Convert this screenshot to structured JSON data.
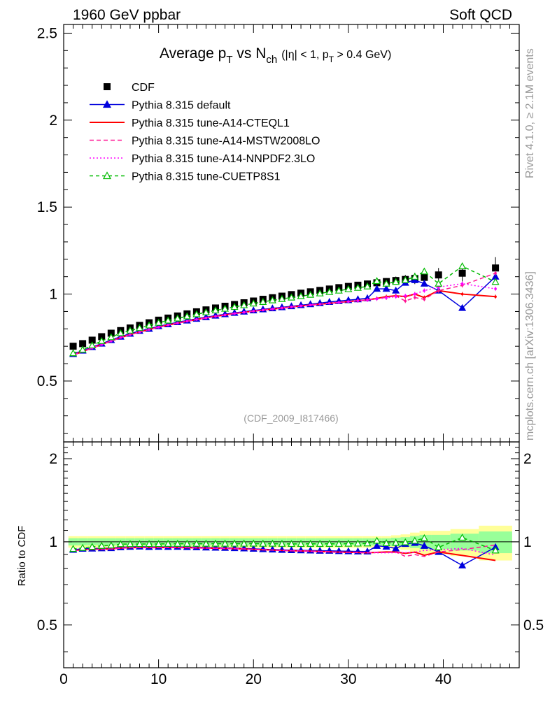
{
  "header": {
    "left": "1960 GeV ppbar",
    "right": "Soft QCD"
  },
  "side": {
    "rivet": "Rivet 4.1.0, ≥ 2.1M events",
    "mcplots": "mcplots.cern.ch [arXiv:1306.3436]"
  },
  "chart_data": {
    "type": "scatter",
    "title_main": "Average p",
    "title_main_sub": "T",
    "title_vs": " vs N",
    "title_vs_sub": "ch",
    "title_cuts_a": "(|η| < 1, p",
    "title_cuts_sub": "T",
    "title_cuts_b": " > 0.4 GeV)",
    "analysis_id": "(CDF_2009_I817466)",
    "ratio_ylabel": "Ratio to CDF",
    "xlim": [
      0,
      48
    ],
    "ylim": [
      0.15,
      2.55
    ],
    "ratio_ylim": [
      0.35,
      2.3
    ],
    "x_ticks": [
      "0",
      "10",
      "20",
      "30",
      "40"
    ],
    "x_tick_values": [
      0,
      10,
      20,
      30,
      40
    ],
    "y_ticks": [
      "0.5",
      "1",
      "1.5",
      "2",
      "2.5"
    ],
    "y_tick_values": [
      0.5,
      1,
      1.5,
      2,
      2.5
    ],
    "ratio_ticks": [
      "0.5",
      "1",
      "2"
    ],
    "ratio_tick_values": [
      0.5,
      1,
      2
    ],
    "x": [
      1,
      2,
      3,
      4,
      5,
      6,
      7,
      8,
      9,
      10,
      11,
      12,
      13,
      14,
      15,
      16,
      17,
      18,
      19,
      20,
      21,
      22,
      23,
      24,
      25,
      26,
      27,
      28,
      29,
      30,
      31,
      32,
      33,
      34,
      35,
      36,
      37,
      38,
      39.5,
      42,
      45.5
    ],
    "data_band": [
      0.03,
      0.03,
      0.03,
      0.03,
      0.03,
      0.03,
      0.03,
      0.03,
      0.03,
      0.03,
      0.03,
      0.03,
      0.03,
      0.03,
      0.03,
      0.03,
      0.03,
      0.03,
      0.03,
      0.03,
      0.03,
      0.03,
      0.03,
      0.03,
      0.03,
      0.03,
      0.03,
      0.03,
      0.03,
      0.03,
      0.03,
      0.03,
      0.03,
      0.03,
      0.035,
      0.04,
      0.05,
      0.06,
      0.06,
      0.07,
      0.09
    ],
    "series": [
      {
        "name": "CDF",
        "color": "#000000",
        "style": "data",
        "values": [
          0.7,
          0.715,
          0.735,
          0.755,
          0.775,
          0.79,
          0.805,
          0.82,
          0.835,
          0.85,
          0.862,
          0.874,
          0.886,
          0.898,
          0.909,
          0.92,
          0.93,
          0.94,
          0.95,
          0.96,
          0.97,
          0.979,
          0.988,
          0.997,
          1.005,
          1.013,
          1.021,
          1.029,
          1.037,
          1.044,
          1.051,
          1.058,
          1.065,
          1.072,
          1.078,
          1.084,
          1.09,
          1.096,
          1.11,
          1.12,
          1.15
        ]
      },
      {
        "name": "Pythia 8.315 default",
        "color": "#0000dd",
        "style": "solid-triangle",
        "values": [
          0.655,
          0.675,
          0.695,
          0.715,
          0.735,
          0.755,
          0.772,
          0.788,
          0.8,
          0.815,
          0.826,
          0.838,
          0.848,
          0.858,
          0.867,
          0.876,
          0.884,
          0.892,
          0.899,
          0.906,
          0.912,
          0.918,
          0.924,
          0.93,
          0.936,
          0.942,
          0.948,
          0.955,
          0.96,
          0.965,
          0.97,
          0.976,
          1.03,
          1.03,
          1.02,
          1.065,
          1.08,
          1.06,
          1.02,
          0.92,
          1.1
        ]
      },
      {
        "name": "Pythia 8.315 tune-A14-CTEQL1",
        "color": "#ff0000",
        "style": "solid",
        "values": [
          0.65,
          0.67,
          0.69,
          0.71,
          0.73,
          0.75,
          0.767,
          0.782,
          0.796,
          0.81,
          0.822,
          0.833,
          0.844,
          0.854,
          0.863,
          0.872,
          0.88,
          0.888,
          0.895,
          0.902,
          0.908,
          0.914,
          0.92,
          0.926,
          0.932,
          0.937,
          0.942,
          0.947,
          0.952,
          0.957,
          0.962,
          0.966,
          0.975,
          0.985,
          0.99,
          0.985,
          1.0,
          0.98,
          1.02,
          1.0,
          0.985
        ]
      },
      {
        "name": "Pythia 8.315 tune-A14-MSTW2008LO",
        "color": "#ff1493",
        "style": "dashed",
        "values": [
          0.65,
          0.67,
          0.69,
          0.71,
          0.73,
          0.75,
          0.767,
          0.782,
          0.796,
          0.81,
          0.822,
          0.833,
          0.844,
          0.854,
          0.863,
          0.872,
          0.88,
          0.888,
          0.895,
          0.902,
          0.908,
          0.914,
          0.92,
          0.926,
          0.932,
          0.937,
          0.942,
          0.947,
          0.952,
          0.957,
          0.962,
          0.966,
          0.975,
          0.98,
          0.99,
          0.96,
          0.98,
          0.97,
          1.02,
          1.05,
          1.12
        ]
      },
      {
        "name": "Pythia 8.315 tune-A14-NNPDF2.3LO",
        "color": "#ff00ff",
        "style": "dotted",
        "values": [
          0.65,
          0.67,
          0.69,
          0.71,
          0.73,
          0.75,
          0.767,
          0.782,
          0.796,
          0.81,
          0.822,
          0.833,
          0.844,
          0.854,
          0.863,
          0.872,
          0.88,
          0.888,
          0.895,
          0.902,
          0.908,
          0.914,
          0.92,
          0.926,
          0.932,
          0.937,
          0.942,
          0.947,
          0.952,
          0.957,
          0.962,
          0.966,
          0.972,
          0.978,
          0.985,
          0.99,
          1.0,
          1.02,
          1.04,
          1.06,
          1.03
        ]
      },
      {
        "name": "Pythia 8.315 tune-CUETP8S1",
        "color": "#00bb00",
        "style": "dashed-open-triangle",
        "values": [
          0.66,
          0.68,
          0.705,
          0.73,
          0.752,
          0.775,
          0.79,
          0.805,
          0.82,
          0.835,
          0.848,
          0.86,
          0.872,
          0.884,
          0.895,
          0.906,
          0.916,
          0.926,
          0.936,
          0.946,
          0.955,
          0.964,
          0.972,
          0.98,
          0.988,
          0.996,
          1.004,
          1.012,
          1.02,
          1.028,
          1.036,
          1.044,
          1.075,
          1.06,
          1.07,
          1.08,
          1.1,
          1.13,
          1.06,
          1.16,
          1.07
        ]
      }
    ]
  }
}
